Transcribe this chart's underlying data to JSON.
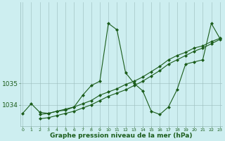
{
  "title": "Graphe pression niveau de la mer (hPa)",
  "bg_color": "#cdeef0",
  "line_color": "#1a5c1a",
  "grid_color": "#99bbbb",
  "yticks": [
    1034,
    1035
  ],
  "ylim": [
    1033.0,
    1038.8
  ],
  "xlim": [
    -0.3,
    23.3
  ],
  "xticks": [
    0,
    1,
    2,
    3,
    4,
    5,
    6,
    7,
    8,
    9,
    10,
    11,
    12,
    13,
    14,
    15,
    16,
    17,
    18,
    19,
    20,
    21,
    22,
    23
  ],
  "series": [
    {
      "x": [
        0,
        1,
        2,
        3,
        4,
        5,
        6,
        7,
        8,
        9,
        10,
        11,
        12,
        13,
        14,
        15,
        16,
        17,
        18,
        19,
        20,
        21,
        22,
        23
      ],
      "y": [
        1033.6,
        1034.05,
        1033.65,
        1033.6,
        1033.7,
        1033.75,
        1033.9,
        1034.45,
        1034.9,
        1035.1,
        1037.8,
        1037.5,
        1035.5,
        1035.0,
        1034.65,
        1033.7,
        1033.55,
        1033.9,
        1034.7,
        1035.9,
        1036.0,
        1036.1,
        1037.8,
        1037.1
      ]
    },
    {
      "x": [
        2,
        3,
        4,
        5,
        6,
        7,
        8,
        9,
        10,
        11,
        12,
        13,
        14,
        15,
        16,
        17,
        18,
        19,
        20,
        21,
        22,
        23
      ],
      "y": [
        1033.55,
        1033.6,
        1033.7,
        1033.8,
        1033.9,
        1034.05,
        1034.2,
        1034.45,
        1034.6,
        1034.75,
        1034.95,
        1035.1,
        1035.3,
        1035.55,
        1035.8,
        1036.1,
        1036.3,
        1036.45,
        1036.65,
        1036.75,
        1036.95,
        1037.1
      ]
    },
    {
      "x": [
        2,
        3,
        4,
        5,
        6,
        7,
        8,
        9,
        10,
        11,
        12,
        13,
        14,
        15,
        16,
        17,
        18,
        19,
        20,
        21,
        22,
        23
      ],
      "y": [
        1033.35,
        1033.4,
        1033.5,
        1033.6,
        1033.7,
        1033.85,
        1034.0,
        1034.2,
        1034.4,
        1034.55,
        1034.7,
        1034.9,
        1035.1,
        1035.35,
        1035.6,
        1035.9,
        1036.1,
        1036.3,
        1036.5,
        1036.65,
        1036.85,
        1037.05
      ]
    }
  ],
  "marker": "D",
  "markersize": 2.0,
  "linewidth": 0.8
}
